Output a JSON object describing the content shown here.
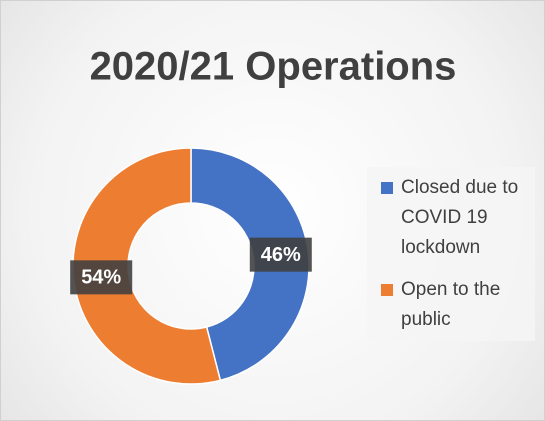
{
  "chart_data": {
    "type": "pie",
    "title": "2020/21 Operations",
    "categories": [
      "Closed due to COVID 19 lockdown",
      "Open to the public"
    ],
    "values": [
      46,
      54
    ],
    "value_labels": [
      "46%",
      "54%"
    ],
    "colors": [
      "#4472c4",
      "#ed7d31"
    ],
    "donut": true,
    "legend": "right"
  }
}
